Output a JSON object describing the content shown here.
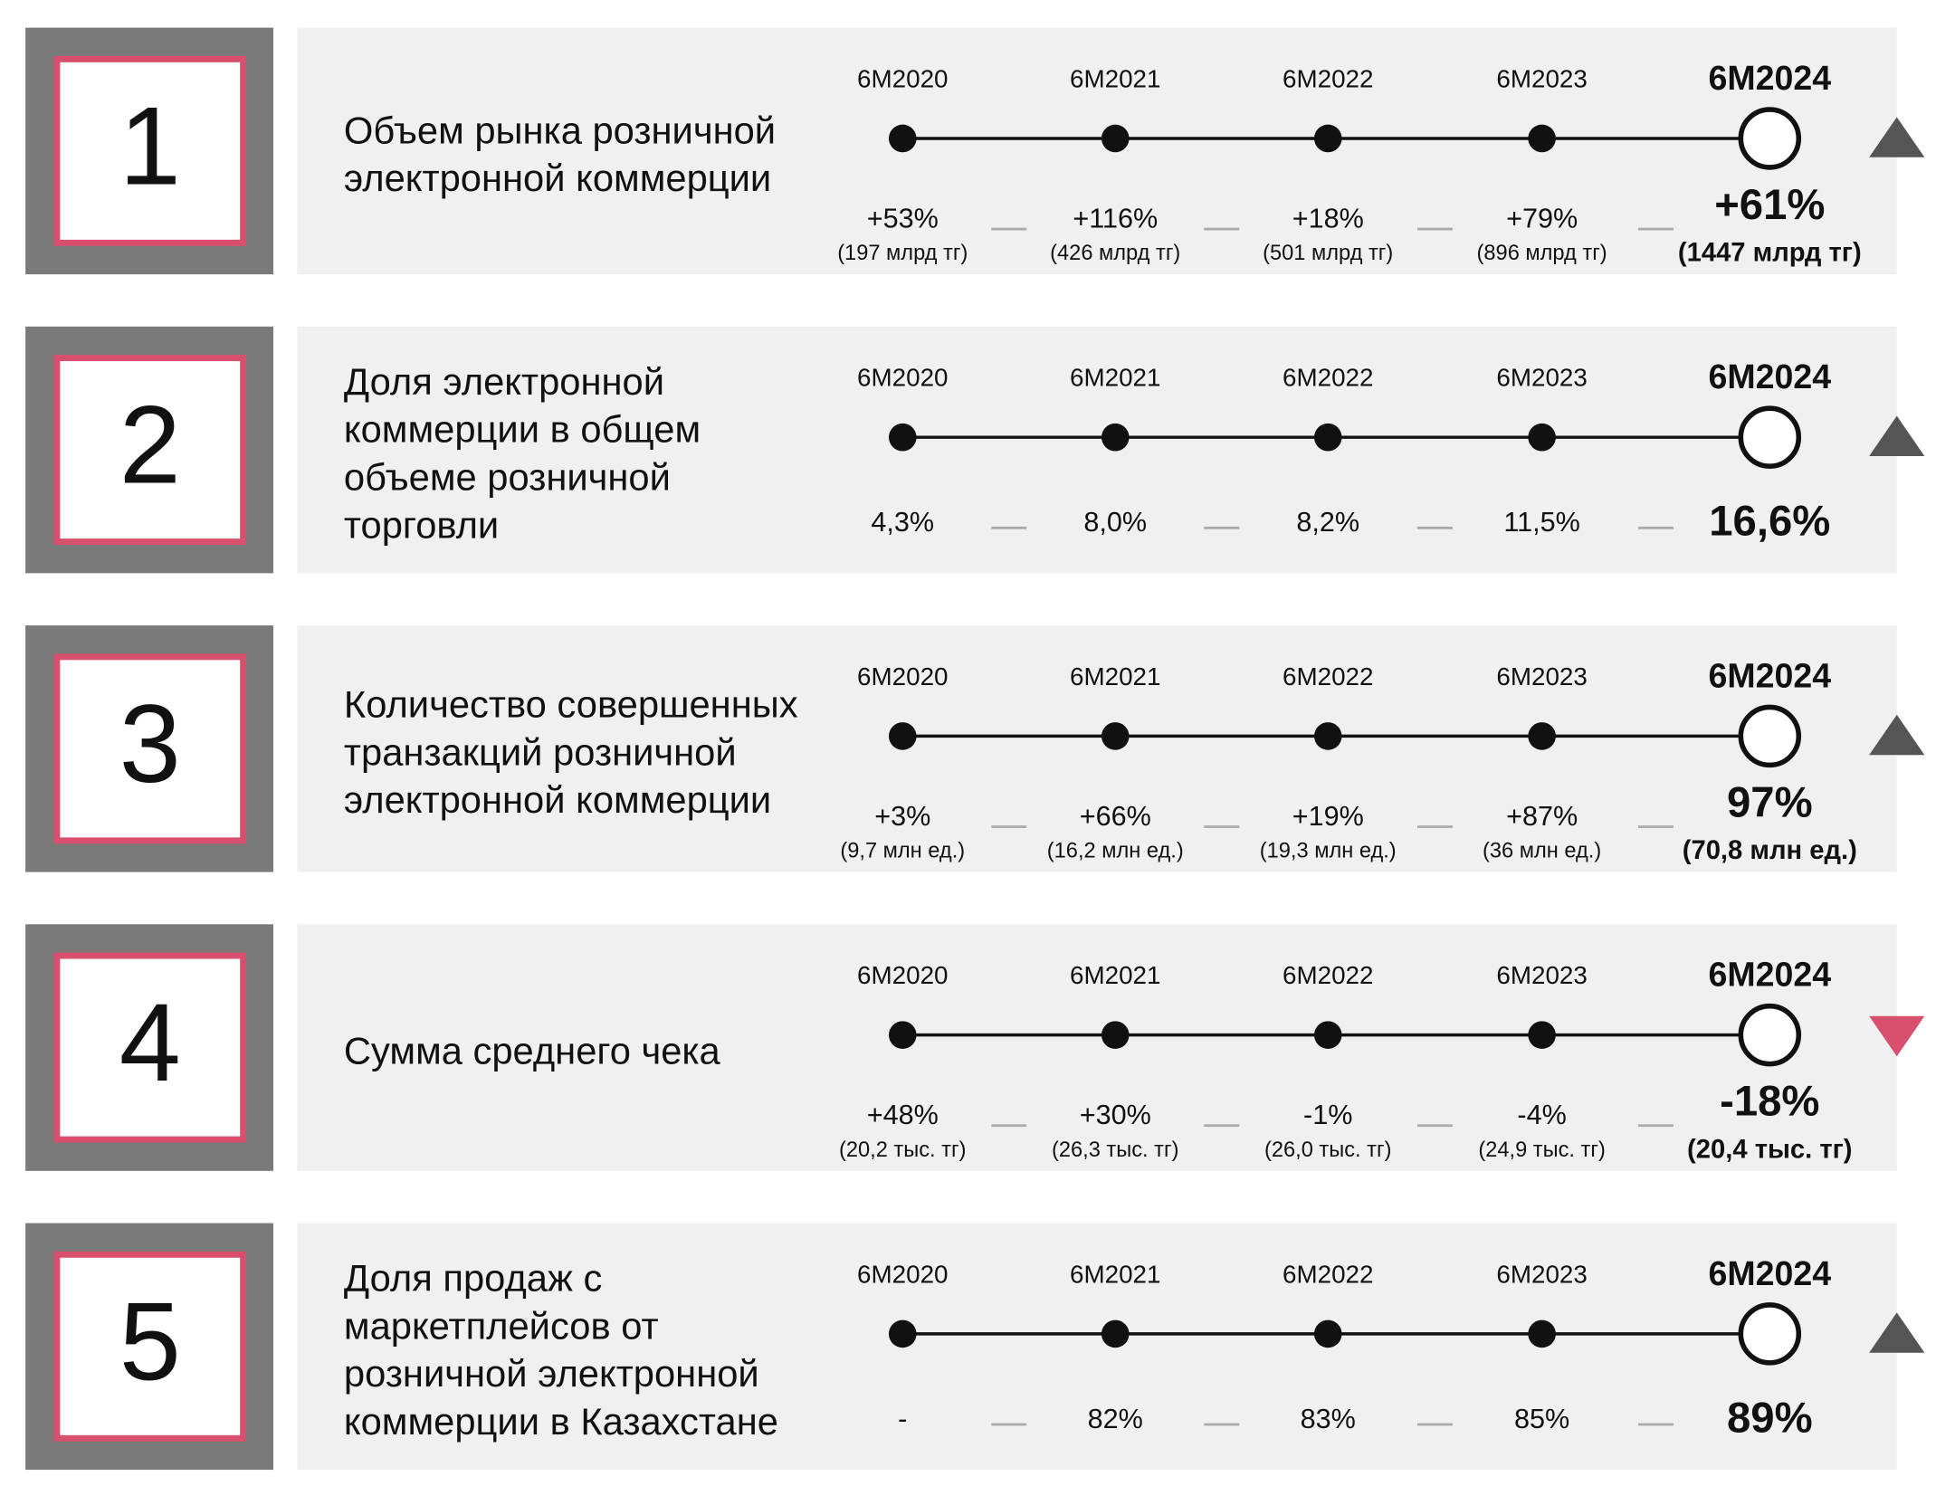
{
  "rows": [
    {
      "number": "1",
      "label": [
        "Объем рынка розничной",
        "электронной коммерции"
      ],
      "trend": "up",
      "periods": [
        "6M2020",
        "6M2021",
        "6M2022",
        "6M2023",
        "6M2024"
      ],
      "values": [
        "+53%",
        "+116%",
        "+18%",
        "+79%",
        "+61%"
      ],
      "details": [
        "(197 млрд тг)",
        "(426 млрд тг)",
        "(501 млрд тг)",
        "(896 млрд тг)",
        "(1447 млрд тг)"
      ]
    },
    {
      "number": "2",
      "label": [
        "Доля электронной",
        "коммерции в общем",
        "объеме розничной",
        "торговли"
      ],
      "trend": "up",
      "periods": [
        "6M2020",
        "6M2021",
        "6M2022",
        "6M2023",
        "6M2024"
      ],
      "values": [
        "4,3%",
        "8,0%",
        "8,2%",
        "11,5%",
        "16,6%"
      ]
    },
    {
      "number": "3",
      "label": [
        "Количество совершенных",
        "транзакций розничной",
        "электронной коммерции"
      ],
      "trend": "up",
      "periods": [
        "6M2020",
        "6M2021",
        "6M2022",
        "6M2023",
        "6M2024"
      ],
      "values": [
        "+3%",
        "+66%",
        "+19%",
        "+87%",
        "97%"
      ],
      "details": [
        "(9,7 млн ед.)",
        "(16,2 млн ед.)",
        "(19,3 млн ед.)",
        "(36 млн ед.)",
        "(70,8 млн ед.)"
      ]
    },
    {
      "number": "4",
      "label": [
        "Сумма среднего чека"
      ],
      "trend": "down",
      "periods": [
        "6M2020",
        "6M2021",
        "6M2022",
        "6M2023",
        "6M2024"
      ],
      "values": [
        "+48%",
        "+30%",
        "-1%",
        "-4%",
        "-18%"
      ],
      "details": [
        "(20,2 тыс. тг)",
        "(26,3 тыс. тг)",
        "(26,0 тыс. тг)",
        "(24,9 тыс. тг)",
        "(20,4 тыс. тг)"
      ]
    },
    {
      "number": "5",
      "label": [
        "Доля продаж с",
        "маркетплейсов от",
        "розничной электронной",
        "коммерции в Казахстане"
      ],
      "trend": "up",
      "periods": [
        "6M2020",
        "6M2021",
        "6M2022",
        "6M2023",
        "6M2024"
      ],
      "values": [
        "-",
        "82%",
        "83%",
        "85%",
        "89%"
      ]
    }
  ]
}
